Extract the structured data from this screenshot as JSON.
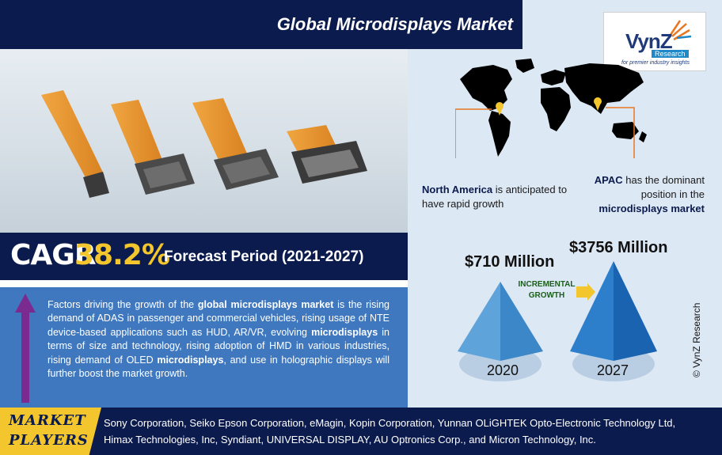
{
  "header": {
    "title": "Global Microdisplays Market"
  },
  "logo": {
    "name": "VynZ",
    "sub": "Research",
    "tagline": "for premier industry insights"
  },
  "cagr": {
    "label": "CAGR",
    "value": "38.2%",
    "forecast": "Forecast Period (2021-2027)"
  },
  "drivers": {
    "p1": "Factors driving the growth of the ",
    "b1": "global microdisplays market",
    "p2": " is the rising demand of ADAS in passenger and commercial vehicles, rising usage of NTE device-based applications such as HUD, AR/VR, evolving ",
    "b2": "microdisplays",
    "p3": " in terms of size and technology, rising adoption of HMD in various industries, rising demand of OLED ",
    "b3": "microdisplays",
    "p4": ", and use in holographic displays will further boost the market growth."
  },
  "regions": {
    "north_america": {
      "name": "North America",
      "text": " is anticipated to have rapid growth"
    },
    "apac": {
      "name": "APAC",
      "text": " has the dominant position in the ",
      "emph": "microdisplays market"
    }
  },
  "market_size": {
    "v2020": "$710 Million",
    "v2027": "$3756 Million",
    "y2020": "2020",
    "y2027": "2027",
    "incremental_1": "INCREMENTAL",
    "incremental_2": "GROWTH"
  },
  "copyright": "© VynZ Research",
  "players": {
    "label_1": "MARKET",
    "label_2": "PLAYERS",
    "line1": "Sony Corporation, Seiko Epson Corporation, eMagin, Kopin Corporation, Yunnan OLiGHTEK Opto-Electronic Technology Ltd,",
    "line2": "Himax Technologies, Inc, Syndiant, UNIVERSAL DISPLAY, AU Optronics Corp., and Micron Technology, Inc."
  },
  "colors": {
    "navy": "#0c1b4d",
    "accent_yellow": "#f2c62c",
    "driver_blue": "#3f78bf",
    "orange_line": "#e87722",
    "pyramid_light": "#4a90cc",
    "pyramid_dark": "#1f6fbf"
  }
}
